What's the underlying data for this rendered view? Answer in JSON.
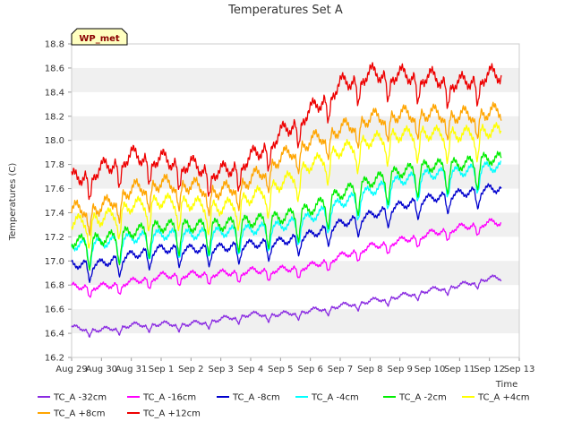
{
  "chart_data": {
    "type": "line",
    "title": "Temperatures Set A",
    "xlabel": "Time",
    "ylabel": "Temperatures (C)",
    "badge": "WP_met",
    "ylim": [
      16.2,
      18.8
    ],
    "yticks": [
      "16.2",
      "16.4",
      "16.6",
      "16.8",
      "17.0",
      "17.2",
      "17.4",
      "17.6",
      "17.8",
      "18.0",
      "18.2",
      "18.4",
      "18.6",
      "18.8"
    ],
    "xticks": [
      "Aug 29",
      "Aug 30",
      "Aug 31",
      "Sep 1",
      "Sep 2",
      "Sep 3",
      "Sep 4",
      "Sep 5",
      "Sep 6",
      "Sep 7",
      "Sep 8",
      "Sep 9",
      "Sep 10",
      "Sep 11",
      "Sep 12",
      "Sep 13"
    ],
    "x": [
      "Aug 29",
      "Aug 30",
      "Aug 31",
      "Sep 1",
      "Sep 2",
      "Sep 3",
      "Sep 4",
      "Sep 5",
      "Sep 6",
      "Sep 7",
      "Sep 8",
      "Sep 9",
      "Sep 10",
      "Sep 11",
      "Sep 12"
    ],
    "grid": "horizontal bands",
    "legend_position": "bottom",
    "series": [
      {
        "name": "TC_A -32cm",
        "color": "#8a2be2",
        "values": [
          16.45,
          16.43,
          16.47,
          16.48,
          16.48,
          16.52,
          16.56,
          16.56,
          16.59,
          16.63,
          16.67,
          16.71,
          16.76,
          16.8,
          16.86
        ]
      },
      {
        "name": "TC_A -16cm",
        "color": "#ff00ff",
        "values": [
          16.79,
          16.79,
          16.83,
          16.88,
          16.89,
          16.9,
          16.92,
          16.93,
          16.96,
          17.04,
          17.12,
          17.17,
          17.23,
          17.28,
          17.32
        ]
      },
      {
        "name": "TC_A -8cm",
        "color": "#0000cd",
        "values": [
          16.97,
          16.98,
          17.05,
          17.1,
          17.1,
          17.11,
          17.14,
          17.16,
          17.22,
          17.31,
          17.38,
          17.46,
          17.52,
          17.56,
          17.6
        ]
      },
      {
        "name": "TC_A -4cm",
        "color": "#00ffff",
        "values": [
          17.13,
          17.15,
          17.19,
          17.22,
          17.22,
          17.24,
          17.26,
          17.29,
          17.36,
          17.48,
          17.58,
          17.67,
          17.72,
          17.74,
          17.78
        ]
      },
      {
        "name": "TC_A -2cm",
        "color": "#00ee00",
        "values": [
          17.16,
          17.18,
          17.24,
          17.29,
          17.29,
          17.3,
          17.33,
          17.36,
          17.43,
          17.56,
          17.66,
          17.74,
          17.79,
          17.8,
          17.85
        ]
      },
      {
        "name": "TC_A +4cm",
        "color": "#ffff00",
        "values": [
          17.32,
          17.35,
          17.46,
          17.5,
          17.48,
          17.44,
          17.53,
          17.64,
          17.8,
          17.92,
          18.0,
          18.05,
          18.06,
          18.05,
          18.08
        ]
      },
      {
        "name": "TC_A +8cm",
        "color": "#ffa500",
        "values": [
          17.43,
          17.45,
          17.6,
          17.65,
          17.63,
          17.58,
          17.68,
          17.86,
          18.0,
          18.1,
          18.19,
          18.22,
          18.23,
          18.21,
          18.24
        ]
      },
      {
        "name": "TC_A +12cm",
        "color": "#ee0000",
        "values": [
          17.68,
          17.77,
          17.88,
          17.85,
          17.8,
          17.74,
          17.86,
          18.06,
          18.25,
          18.47,
          18.56,
          18.55,
          18.53,
          18.48,
          18.55
        ]
      }
    ]
  }
}
